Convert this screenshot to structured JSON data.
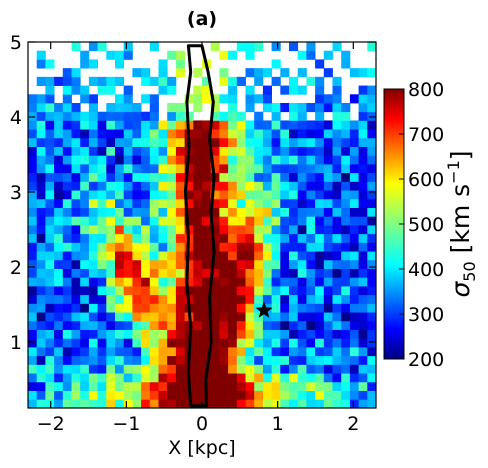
{
  "chart_data": {
    "type": "heatmap",
    "title": "(a)",
    "xlabel": "X [kpc]",
    "ylabel": "",
    "xlim": [
      -2.3,
      2.3
    ],
    "ylim": [
      0.12,
      5.0
    ],
    "x_ticks": [
      -2,
      -1,
      0,
      1,
      2
    ],
    "x_tick_labels": [
      "−2",
      "−1",
      "0",
      "1",
      "2"
    ],
    "y_ticks": [
      1,
      2,
      3,
      4,
      5
    ],
    "y_tick_labels": [
      "1",
      "2",
      "3",
      "4",
      "5"
    ],
    "grid": false,
    "bins": {
      "nx": 40,
      "ny": 42
    },
    "colormap": "jet",
    "colorbar": {
      "label": "σ",
      "label_sub": "50",
      "label_units": " [km s",
      "label_sup": "−1",
      "label_close": "]",
      "range": [
        200,
        800
      ],
      "ticks": [
        200,
        300,
        400,
        500,
        600,
        700,
        800
      ],
      "tick_labels": [
        "200",
        "300",
        "400",
        "500",
        "600",
        "700",
        "800"
      ]
    },
    "empty_bins": "white (no data), mainly above y ≈ 4",
    "field_structure": [
      {
        "feature": "background",
        "sigma_50": 250
      },
      {
        "feature": "central column near x = 0",
        "sigma_50": 800
      },
      {
        "feature": "X-shaped arms toward upper left and upper right",
        "sigma_50": 700
      },
      {
        "feature": "base at low y",
        "sigma_50": 780
      }
    ],
    "contour": {
      "color": "#000000",
      "points": [
        {
          "x": -0.15,
          "y": 0.15
        },
        {
          "x": -0.18,
          "y": 0.6
        },
        {
          "x": -0.15,
          "y": 1.2
        },
        {
          "x": -0.2,
          "y": 1.8
        },
        {
          "x": -0.18,
          "y": 2.4
        },
        {
          "x": -0.22,
          "y": 3.0
        },
        {
          "x": -0.17,
          "y": 3.6
        },
        {
          "x": -0.2,
          "y": 4.2
        },
        {
          "x": -0.15,
          "y": 4.6
        },
        {
          "x": -0.18,
          "y": 4.95
        },
        {
          "x": 0.0,
          "y": 4.95
        },
        {
          "x": 0.08,
          "y": 4.6
        },
        {
          "x": 0.15,
          "y": 4.2
        },
        {
          "x": 0.1,
          "y": 3.7
        },
        {
          "x": 0.16,
          "y": 3.2
        },
        {
          "x": 0.12,
          "y": 2.7
        },
        {
          "x": 0.16,
          "y": 2.2
        },
        {
          "x": 0.1,
          "y": 1.6
        },
        {
          "x": 0.12,
          "y": 1.0
        },
        {
          "x": 0.05,
          "y": 0.5
        },
        {
          "x": 0.06,
          "y": 0.15
        }
      ]
    },
    "marker": {
      "symbol": "star",
      "x": 0.82,
      "y": 1.42,
      "color": "#000000"
    }
  }
}
